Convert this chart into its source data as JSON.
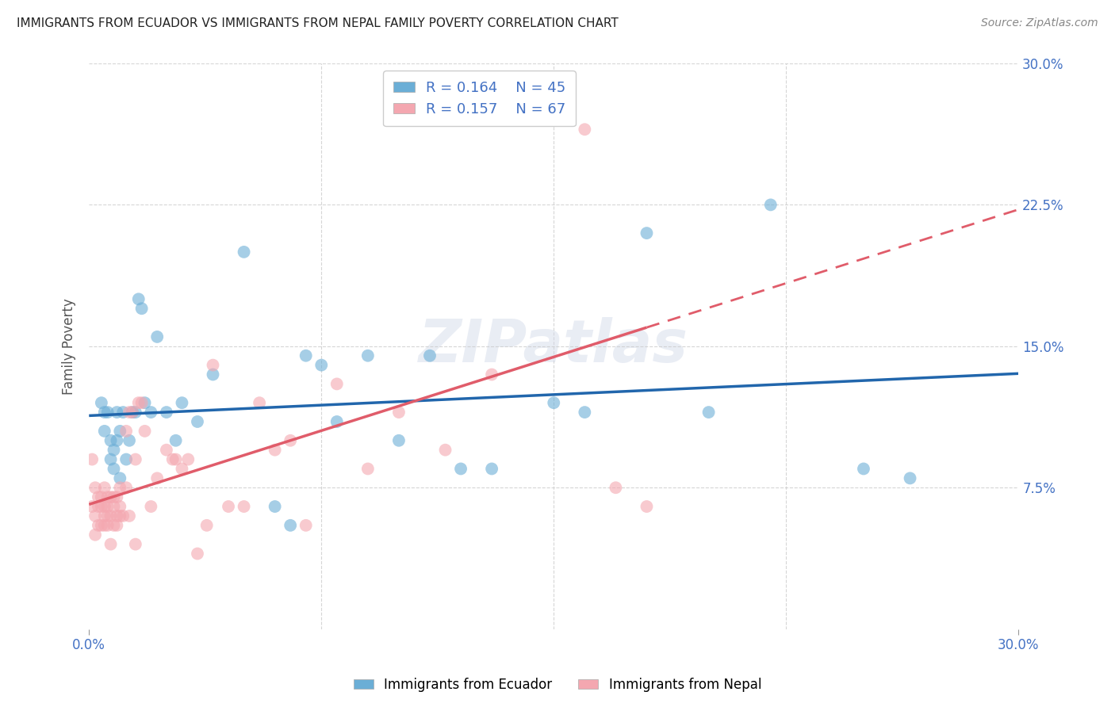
{
  "title": "IMMIGRANTS FROM ECUADOR VS IMMIGRANTS FROM NEPAL FAMILY POVERTY CORRELATION CHART",
  "source_text": "Source: ZipAtlas.com",
  "xlabel": "",
  "ylabel": "Family Poverty",
  "legend_label_1": "Immigrants from Ecuador",
  "legend_label_2": "Immigrants from Nepal",
  "r1": 0.164,
  "n1": 45,
  "r2": 0.157,
  "n2": 67,
  "color_ecuador": "#6baed6",
  "color_nepal": "#f4a7b0",
  "line_color_ecuador": "#2166ac",
  "line_color_nepal": "#e05c6a",
  "xlim": [
    0.0,
    0.3
  ],
  "ylim": [
    0.0,
    0.3
  ],
  "ytick_labels": [
    "7.5%",
    "15.0%",
    "22.5%",
    "30.0%"
  ],
  "ytick_values": [
    0.075,
    0.15,
    0.225,
    0.3
  ],
  "watermark": "ZIPatlas",
  "ecuador_x": [
    0.004,
    0.005,
    0.005,
    0.006,
    0.007,
    0.007,
    0.008,
    0.008,
    0.009,
    0.009,
    0.01,
    0.01,
    0.011,
    0.012,
    0.013,
    0.014,
    0.015,
    0.016,
    0.017,
    0.018,
    0.02,
    0.022,
    0.025,
    0.028,
    0.03,
    0.035,
    0.04,
    0.05,
    0.06,
    0.065,
    0.07,
    0.075,
    0.08,
    0.09,
    0.1,
    0.11,
    0.12,
    0.13,
    0.15,
    0.16,
    0.18,
    0.2,
    0.22,
    0.25,
    0.265
  ],
  "ecuador_y": [
    0.12,
    0.105,
    0.115,
    0.115,
    0.09,
    0.1,
    0.085,
    0.095,
    0.1,
    0.115,
    0.08,
    0.105,
    0.115,
    0.09,
    0.1,
    0.115,
    0.115,
    0.175,
    0.17,
    0.12,
    0.115,
    0.155,
    0.115,
    0.1,
    0.12,
    0.11,
    0.135,
    0.2,
    0.065,
    0.055,
    0.145,
    0.14,
    0.11,
    0.145,
    0.1,
    0.145,
    0.085,
    0.085,
    0.12,
    0.115,
    0.21,
    0.115,
    0.225,
    0.085,
    0.08
  ],
  "nepal_x": [
    0.001,
    0.001,
    0.002,
    0.002,
    0.002,
    0.003,
    0.003,
    0.003,
    0.004,
    0.004,
    0.004,
    0.005,
    0.005,
    0.005,
    0.005,
    0.006,
    0.006,
    0.006,
    0.006,
    0.007,
    0.007,
    0.007,
    0.008,
    0.008,
    0.008,
    0.009,
    0.009,
    0.009,
    0.01,
    0.01,
    0.01,
    0.011,
    0.012,
    0.012,
    0.013,
    0.013,
    0.014,
    0.015,
    0.015,
    0.016,
    0.017,
    0.018,
    0.02,
    0.022,
    0.025,
    0.027,
    0.028,
    0.03,
    0.032,
    0.035,
    0.038,
    0.04,
    0.045,
    0.05,
    0.055,
    0.06,
    0.065,
    0.07,
    0.08,
    0.09,
    0.1,
    0.115,
    0.13,
    0.15,
    0.16,
    0.17,
    0.18
  ],
  "nepal_y": [
    0.065,
    0.09,
    0.06,
    0.075,
    0.05,
    0.065,
    0.055,
    0.07,
    0.07,
    0.055,
    0.065,
    0.055,
    0.065,
    0.06,
    0.075,
    0.055,
    0.065,
    0.06,
    0.07,
    0.045,
    0.06,
    0.07,
    0.065,
    0.055,
    0.07,
    0.06,
    0.055,
    0.07,
    0.06,
    0.065,
    0.075,
    0.06,
    0.075,
    0.105,
    0.06,
    0.115,
    0.115,
    0.045,
    0.09,
    0.12,
    0.12,
    0.105,
    0.065,
    0.08,
    0.095,
    0.09,
    0.09,
    0.085,
    0.09,
    0.04,
    0.055,
    0.14,
    0.065,
    0.065,
    0.12,
    0.095,
    0.1,
    0.055,
    0.13,
    0.085,
    0.115,
    0.095,
    0.135,
    0.27,
    0.265,
    0.075,
    0.065
  ]
}
